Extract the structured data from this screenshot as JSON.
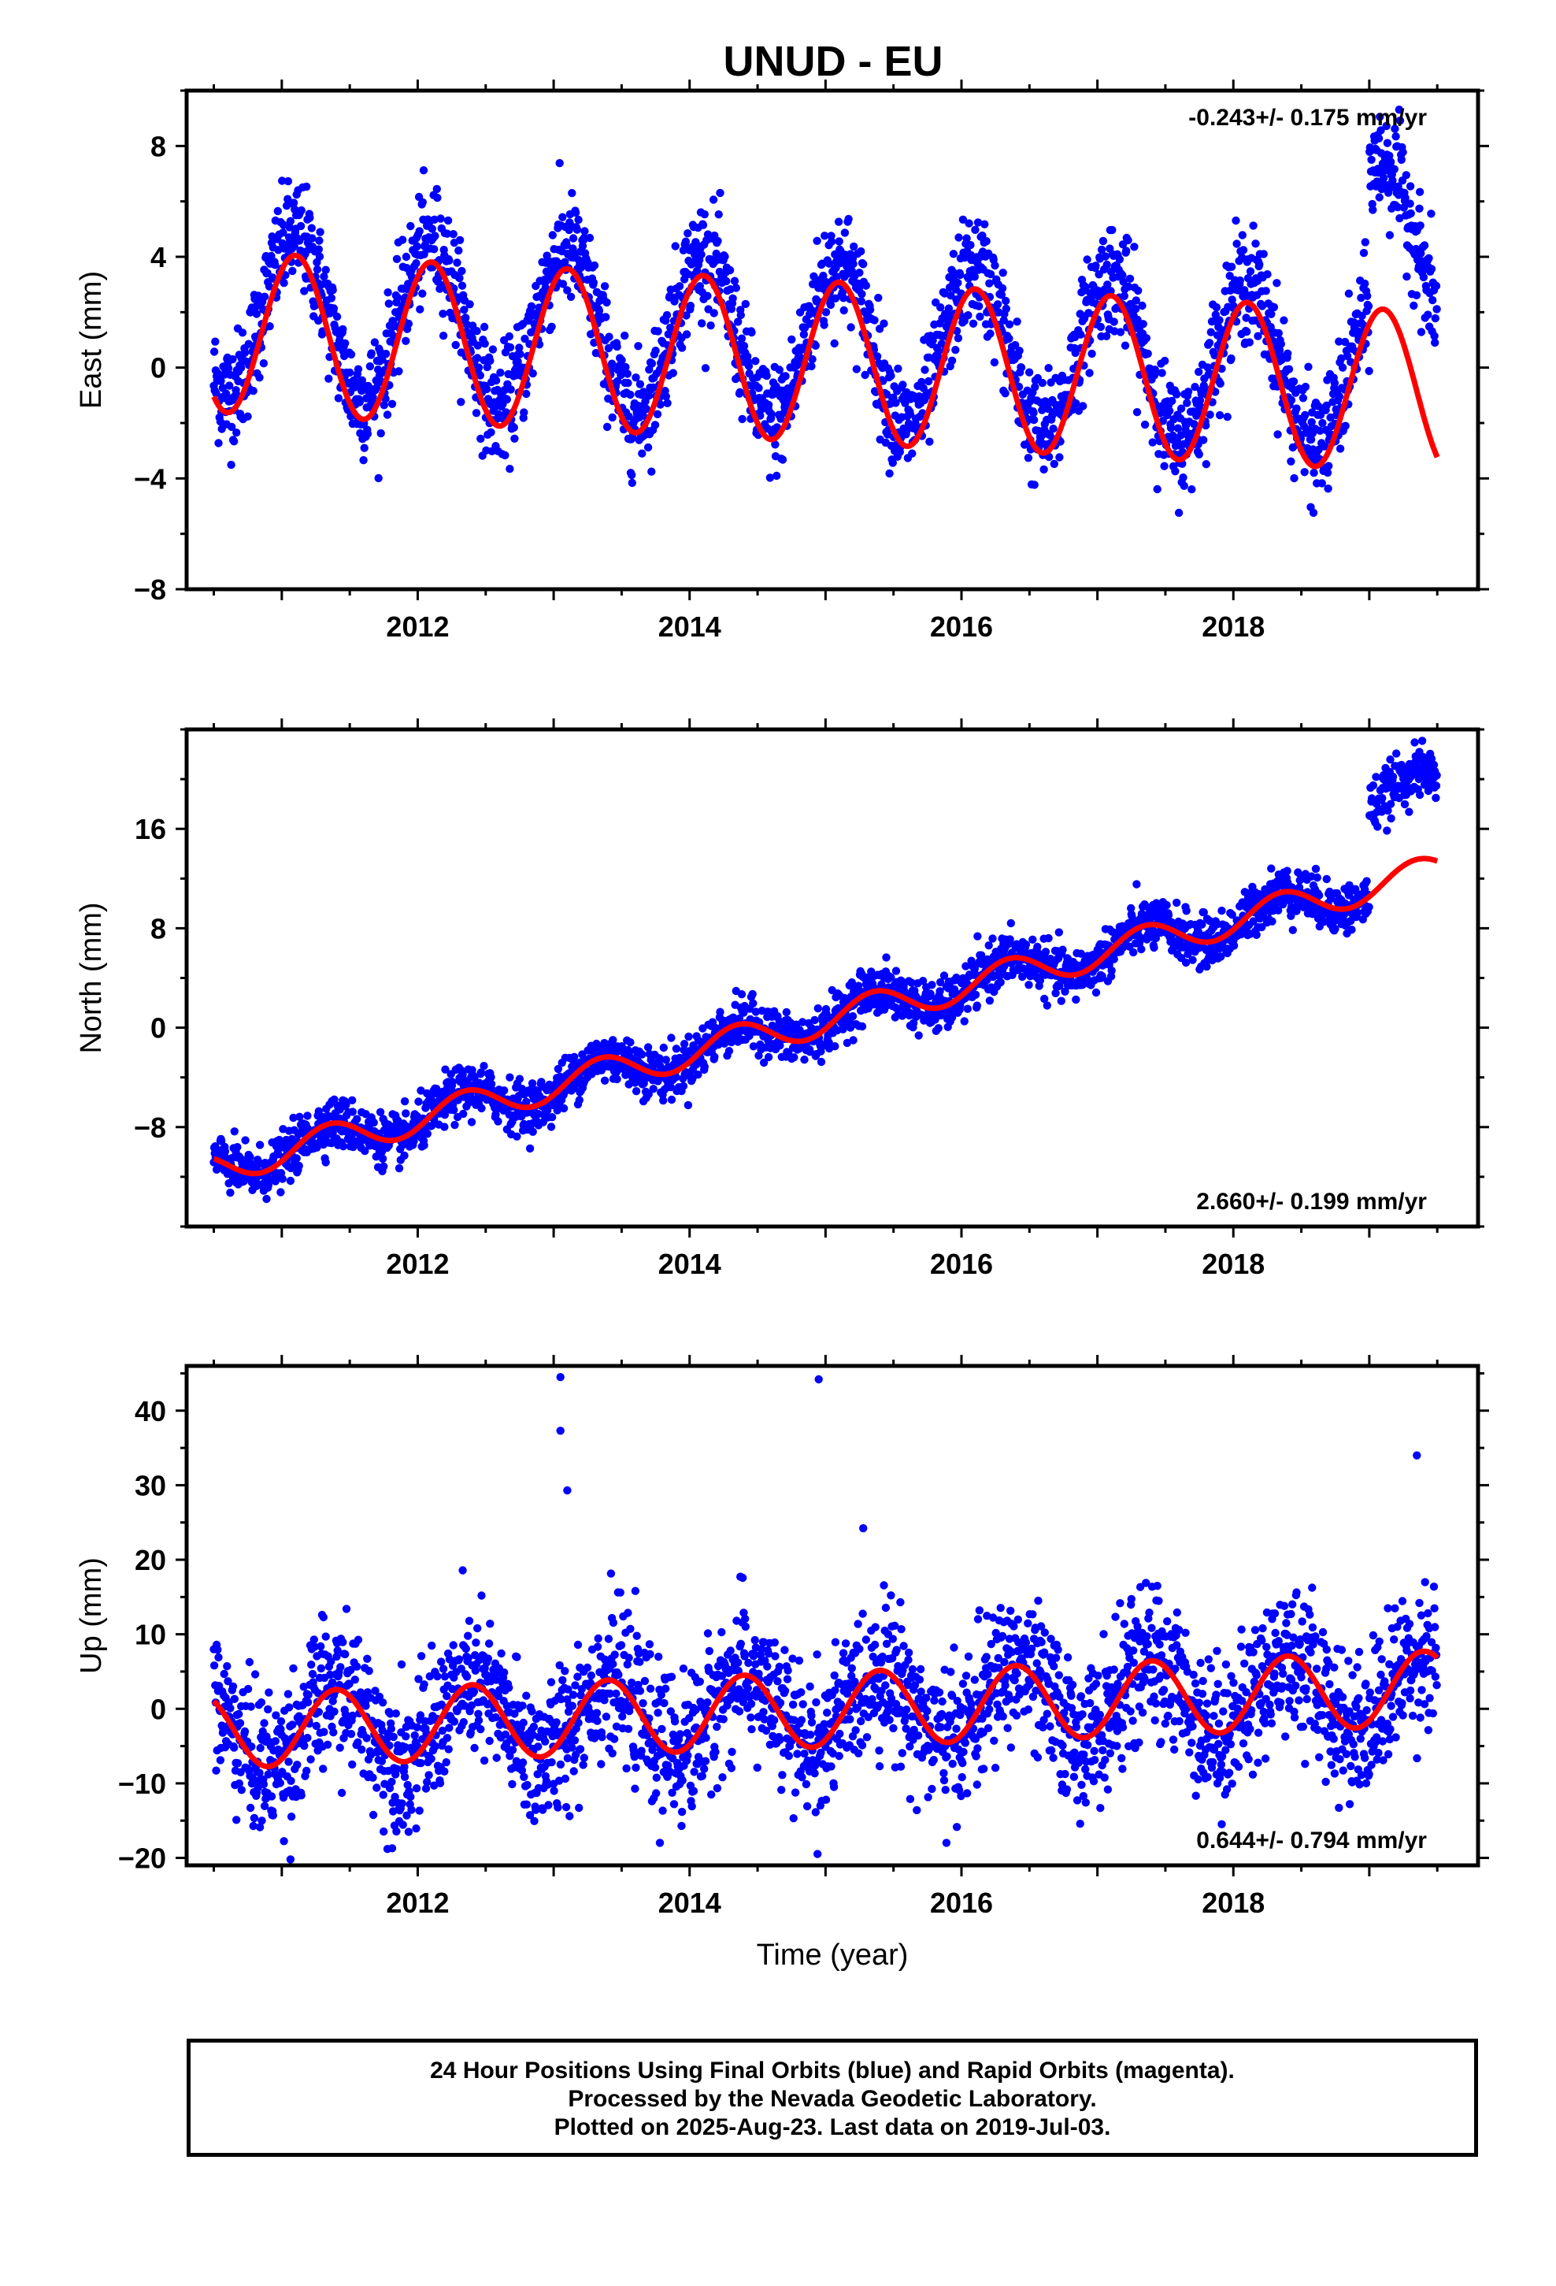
{
  "title": "UNUD - EU",
  "footer": {
    "line1": "24 Hour Positions Using Final Orbits (blue) and Rapid Orbits (magenta).",
    "line2": "Processed by the Nevada Geodetic Laboratory.",
    "line3": "Plotted on 2025-Aug-23. Last data on 2019-Jul-03."
  },
  "colors": {
    "points": "#0000ff",
    "fit": "#ff0000",
    "axis": "#000000"
  },
  "chart_data": [
    {
      "type": "scatter",
      "title": "UNUD - EU",
      "ylabel": "East (mm)",
      "xlabel": "",
      "xlim": [
        2010.3,
        2019.8
      ],
      "ylim": [
        -8,
        10
      ],
      "x_ticks": [
        2012,
        2014,
        2016,
        2018
      ],
      "x_tick_labels": [
        "2012",
        "2014",
        "2016",
        "2018"
      ],
      "y_ticks": [
        -8,
        -4,
        0,
        4,
        8
      ],
      "y_tick_labels": [
        "−8",
        "−4",
        "0",
        "4",
        "8"
      ],
      "rate_label": "-0.243+/- 0.175 mm/yr",
      "rate_label_position": "top-right",
      "grid": false,
      "series": [
        {
          "kind": "points",
          "color": "#0000ff",
          "model": {
            "start": 2010.5,
            "end": 2019.5,
            "trend": -0.243,
            "offset": 2.0,
            "annual_amp": 2.9,
            "annual_phase": 0.1,
            "noise": 1.0,
            "steps": [
              {
                "at": 2019.0,
                "size": 4.6
              }
            ]
          }
        },
        {
          "kind": "fit",
          "color": "#ff0000",
          "model": {
            "start": 2010.5,
            "end": 2019.5,
            "trend": -0.243,
            "offset": 1.3,
            "annual_amp": 2.9,
            "annual_phase": 0.1
          }
        }
      ]
    },
    {
      "type": "scatter",
      "ylabel": "North (mm)",
      "xlabel": "",
      "xlim": [
        2010.3,
        2019.8
      ],
      "ylim": [
        -16,
        24
      ],
      "x_ticks": [
        2012,
        2014,
        2016,
        2018
      ],
      "x_tick_labels": [
        "2012",
        "2014",
        "2016",
        "2018"
      ],
      "y_ticks": [
        -8,
        0,
        8,
        16
      ],
      "y_tick_labels": [
        "−8",
        "0",
        "8",
        "16"
      ],
      "rate_label": "2.660+/- 0.199 mm/yr",
      "rate_label_position": "bottom-right",
      "grid": false,
      "series": [
        {
          "kind": "points",
          "color": "#0000ff",
          "model": {
            "start": 2010.5,
            "end": 2019.5,
            "trend": 2.66,
            "offset": -11.3,
            "annual_amp": 1.3,
            "annual_phase": 0.35,
            "noise": 1.0,
            "steps": [
              {
                "at": 2019.0,
                "size": 7.0
              }
            ]
          }
        },
        {
          "kind": "fit",
          "color": "#ff0000",
          "model": {
            "start": 2010.5,
            "end": 2019.5,
            "trend": 2.66,
            "offset": -11.3,
            "annual_amp": 1.3,
            "annual_phase": 0.35
          }
        }
      ]
    },
    {
      "type": "scatter",
      "ylabel": "Up (mm)",
      "xlabel": "Time (year)",
      "xlim": [
        2010.3,
        2019.8
      ],
      "ylim": [
        -21,
        46
      ],
      "x_ticks": [
        2012,
        2014,
        2016,
        2018
      ],
      "x_tick_labels": [
        "2012",
        "2014",
        "2016",
        "2018"
      ],
      "y_ticks": [
        -20,
        -10,
        0,
        10,
        20,
        30,
        40
      ],
      "y_tick_labels": [
        "−20",
        "−10",
        "0",
        "10",
        "20",
        "30",
        "40"
      ],
      "rate_label": "0.644+/- 0.794 mm/yr",
      "rate_label_position": "bottom-right",
      "grid": false,
      "series": [
        {
          "kind": "points",
          "color": "#0000ff",
          "model": {
            "start": 2010.5,
            "end": 2019.5,
            "trend": 0.644,
            "offset": -3.0,
            "annual_amp": 5.0,
            "annual_phase": 0.4,
            "noise": 4.8,
            "outliers": [
              [
                2013.05,
                44.5
              ],
              [
                2013.05,
                37.3
              ],
              [
                2013.1,
                29.3
              ],
              [
                2014.95,
                44.2
              ],
              [
                2019.35,
                34.0
              ]
            ],
            "steps": []
          }
        },
        {
          "kind": "fit",
          "color": "#ff0000",
          "model": {
            "start": 2010.5,
            "end": 2019.5,
            "trend": 0.644,
            "offset": -3.0,
            "annual_amp": 5.0,
            "annual_phase": 0.4
          }
        }
      ]
    }
  ]
}
